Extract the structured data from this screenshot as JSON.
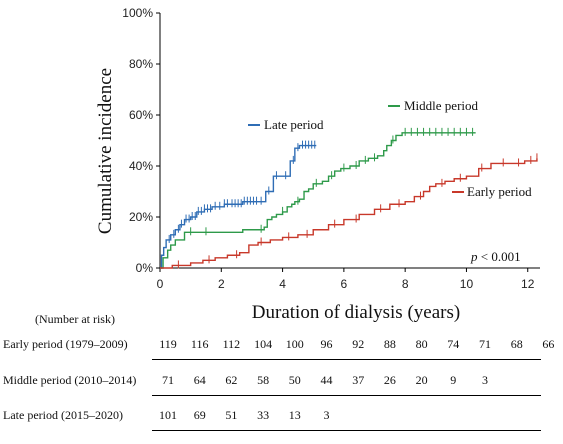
{
  "chart_data": {
    "type": "line",
    "title": "",
    "xlabel": "Duration of dialysis (years)",
    "ylabel": "Cumulative incidence",
    "xlim": [
      0,
      12.4
    ],
    "ylim": [
      0,
      100
    ],
    "x_ticks": [
      0,
      2,
      4,
      6,
      8,
      10,
      12
    ],
    "y_ticks": [
      "0%",
      "20%",
      "40%",
      "60%",
      "80%",
      "100%"
    ],
    "y_tick_values": [
      0,
      20,
      40,
      60,
      80,
      100
    ],
    "annotation_p": "p",
    "annotation_value": " < 0.001",
    "legend_placement": "inline-labels",
    "series": [
      {
        "name": "Late period",
        "color": "#2f6db5",
        "steps": [
          [
            0,
            0
          ],
          [
            0.05,
            5
          ],
          [
            0.12,
            8
          ],
          [
            0.2,
            11
          ],
          [
            0.35,
            13
          ],
          [
            0.5,
            15
          ],
          [
            0.65,
            17
          ],
          [
            0.8,
            19
          ],
          [
            1.0,
            20
          ],
          [
            1.2,
            22
          ],
          [
            1.45,
            23
          ],
          [
            1.7,
            24
          ],
          [
            2.1,
            25
          ],
          [
            2.7,
            26
          ],
          [
            3.1,
            26
          ],
          [
            3.45,
            30
          ],
          [
            3.7,
            36
          ],
          [
            3.9,
            36
          ],
          [
            4.25,
            42
          ],
          [
            4.4,
            47
          ],
          [
            4.55,
            48
          ],
          [
            5.1,
            48
          ]
        ],
        "censor_x": [
          0.3,
          0.45,
          0.6,
          0.7,
          0.85,
          0.95,
          1.05,
          1.15,
          1.25,
          1.35,
          1.45,
          1.55,
          1.65,
          1.8,
          1.95,
          2.1,
          2.2,
          2.35,
          2.45,
          2.55,
          2.65,
          2.75,
          2.85,
          2.95,
          3.05,
          3.15,
          3.3,
          3.55,
          3.8,
          4.1,
          4.35,
          4.5,
          4.65,
          4.75,
          4.85,
          4.95,
          5.05
        ]
      },
      {
        "name": "Middle period",
        "color": "#2e9a4a",
        "steps": [
          [
            0,
            0
          ],
          [
            0.1,
            4
          ],
          [
            0.25,
            7
          ],
          [
            0.35,
            9
          ],
          [
            0.5,
            11
          ],
          [
            0.8,
            14
          ],
          [
            1.0,
            14
          ],
          [
            2.0,
            14
          ],
          [
            2.7,
            15
          ],
          [
            3.4,
            16
          ],
          [
            3.5,
            19
          ],
          [
            3.65,
            20
          ],
          [
            3.8,
            21
          ],
          [
            4.0,
            22
          ],
          [
            4.15,
            24
          ],
          [
            4.3,
            25
          ],
          [
            4.4,
            26
          ],
          [
            4.55,
            27
          ],
          [
            4.7,
            30
          ],
          [
            4.85,
            31
          ],
          [
            5.0,
            33
          ],
          [
            5.3,
            34
          ],
          [
            5.5,
            36
          ],
          [
            5.7,
            38
          ],
          [
            5.9,
            39
          ],
          [
            6.2,
            40
          ],
          [
            6.5,
            42
          ],
          [
            6.8,
            43
          ],
          [
            7.1,
            44
          ],
          [
            7.3,
            46
          ],
          [
            7.4,
            48
          ],
          [
            7.55,
            50
          ],
          [
            7.7,
            52
          ],
          [
            7.9,
            53
          ],
          [
            10.3,
            53
          ]
        ],
        "censor_x": [
          1.0,
          1.5,
          3.3,
          4.0,
          4.5,
          5.1,
          5.6,
          6.0,
          6.4,
          6.7,
          7.0,
          7.6,
          8.0,
          8.2,
          8.4,
          8.6,
          8.8,
          9.0,
          9.2,
          9.4,
          9.6,
          9.8,
          10.0,
          10.2
        ]
      },
      {
        "name": "Early period",
        "color": "#c8382a",
        "steps": [
          [
            0,
            0
          ],
          [
            0.4,
            1
          ],
          [
            0.8,
            1
          ],
          [
            1.0,
            2
          ],
          [
            1.4,
            3
          ],
          [
            1.8,
            4
          ],
          [
            2.2,
            5
          ],
          [
            2.6,
            6
          ],
          [
            2.9,
            9
          ],
          [
            3.2,
            10
          ],
          [
            3.6,
            11
          ],
          [
            4.0,
            12
          ],
          [
            4.5,
            13
          ],
          [
            5.0,
            15
          ],
          [
            5.5,
            17
          ],
          [
            6.0,
            19
          ],
          [
            6.5,
            21
          ],
          [
            7.0,
            23
          ],
          [
            7.5,
            25
          ],
          [
            8.0,
            26
          ],
          [
            8.3,
            28
          ],
          [
            8.6,
            30
          ],
          [
            8.8,
            32
          ],
          [
            9.0,
            33
          ],
          [
            9.3,
            34
          ],
          [
            9.6,
            35
          ],
          [
            10.0,
            36
          ],
          [
            10.4,
            39
          ],
          [
            10.8,
            41
          ],
          [
            11.5,
            41
          ],
          [
            11.9,
            42
          ],
          [
            12.3,
            43
          ]
        ],
        "censor_x": [
          0.6,
          1.6,
          2.5,
          3.3,
          4.2,
          4.8,
          5.7,
          6.4,
          7.2,
          7.8,
          8.5,
          9.2,
          9.8,
          10.5,
          11.2,
          11.7,
          12.1,
          12.3
        ]
      }
    ]
  },
  "legend": {
    "late": "Late period",
    "middle": "Middle period",
    "early": "Early period"
  },
  "risk_table": {
    "header": "(Number at risk)",
    "rows": [
      {
        "label": "Early period (1979–2009)",
        "values": [
          "119",
          "116",
          "112",
          "104",
          "100",
          "96",
          "92",
          "88",
          "80",
          "74",
          "71",
          "68",
          "66"
        ]
      },
      {
        "label": "Middle period (2010–2014)",
        "values": [
          "71",
          "64",
          "62",
          "58",
          "50",
          "44",
          "37",
          "26",
          "20",
          "9",
          "3"
        ]
      },
      {
        "label": "Late period (2015–2020)",
        "values": [
          "101",
          "69",
          "51",
          "33",
          "13",
          "3"
        ]
      }
    ]
  }
}
